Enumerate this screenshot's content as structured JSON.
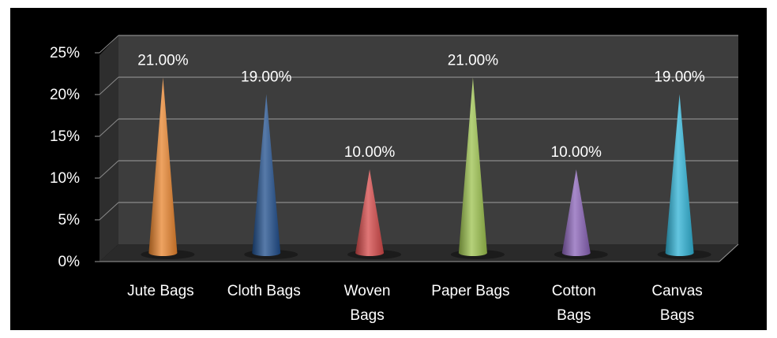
{
  "chart_data": {
    "type": "bar",
    "style": "3d-cone",
    "categories": [
      [
        "Jute Bags"
      ],
      [
        "Cloth Bags"
      ],
      [
        "Woven",
        "Bags"
      ],
      [
        "Paper Bags"
      ],
      [
        "Cotton",
        "Bags"
      ],
      [
        "Canvas",
        "Bags"
      ]
    ],
    "values": [
      21,
      19,
      10,
      21,
      10,
      19
    ],
    "data_labels": [
      "21.00%",
      "19.00%",
      "10.00%",
      "21.00%",
      "10.00%",
      "19.00%"
    ],
    "colors": [
      "#e8842e",
      "#1f4e8c",
      "#d44848",
      "#9cc24e",
      "#8a63b8",
      "#2fb3d6"
    ],
    "yticks": [
      "0%",
      "5%",
      "10%",
      "15%",
      "20%",
      "25%"
    ],
    "ylim": [
      0,
      25
    ],
    "grid": true,
    "background": "#000000",
    "wall_color": "#3d3d3d"
  }
}
